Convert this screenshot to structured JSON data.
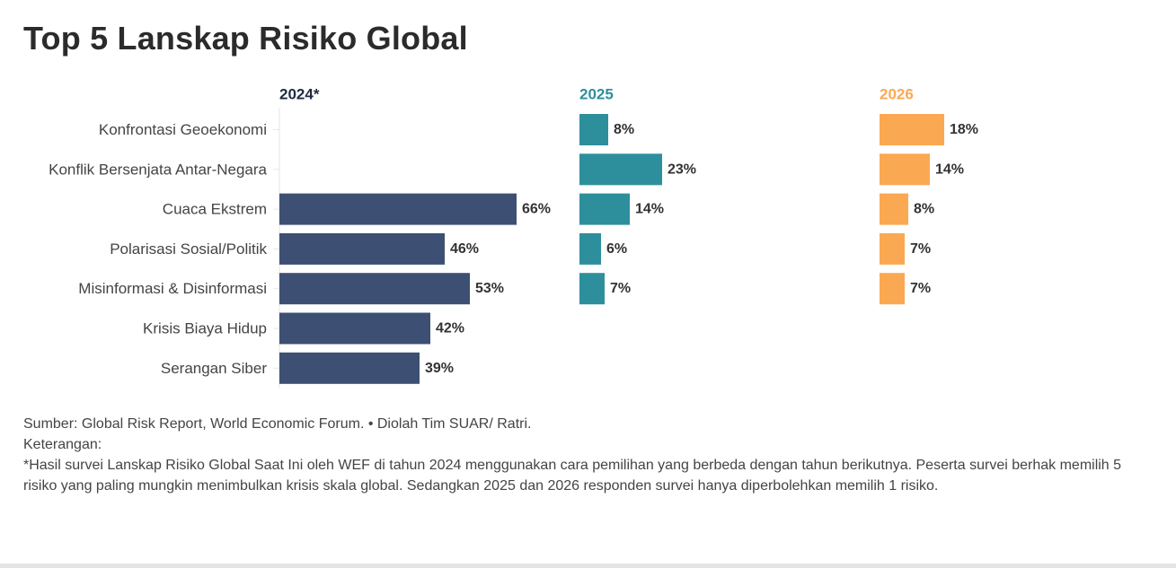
{
  "title": "Top 5 Lanskap Risiko Global",
  "chart_data": {
    "type": "bar",
    "orientation": "horizontal",
    "title": "Top 5 Lanskap Risiko Global",
    "categories": [
      "Konfrontasi Geoekonomi",
      "Konflik Bersenjata Antar-Negara",
      "Cuaca Ekstrem",
      "Polarisasi Sosial/Politik",
      "Misinformasi & Disinformasi",
      "Krisis Biaya Hidup",
      "Serangan Siber"
    ],
    "series": [
      {
        "name": "2024*",
        "color": "#3d5073",
        "values": [
          null,
          null,
          66,
          46,
          53,
          42,
          39
        ],
        "labels": [
          null,
          null,
          "66%",
          "46%",
          "53%",
          "42%",
          "39%"
        ]
      },
      {
        "name": "2025",
        "color": "#2e8f9c",
        "values": [
          8,
          23,
          14,
          6,
          7,
          null,
          null
        ],
        "labels": [
          "8%",
          "23%",
          "14%",
          "6%",
          "7%",
          null,
          null
        ]
      },
      {
        "name": "2026",
        "color": "#fba852",
        "values": [
          18,
          14,
          8,
          7,
          7,
          null,
          null
        ],
        "labels": [
          "18%",
          "14%",
          "8%",
          "7%",
          "7%",
          null,
          null
        ]
      }
    ],
    "value_unit": "%",
    "xlim": [
      0,
      100
    ],
    "grid": false
  },
  "footer": {
    "source": "Sumber: Global Risk Report, World Economic Forum. • Diolah Tim SUAR/ Ratri.",
    "note_label": "Keterangan:",
    "note": "*Hasil survei Lanskap Risiko Global Saat Ini oleh WEF di tahun 2024 menggunakan cara pemilihan yang berbeda dengan tahun berikutnya. Peserta survei berhak memilih 5 risiko yang paling mungkin menimbulkan krisis skala global. Sedangkan 2025 dan 2026 responden survei hanya diperbolehkan memilih 1 risiko."
  }
}
